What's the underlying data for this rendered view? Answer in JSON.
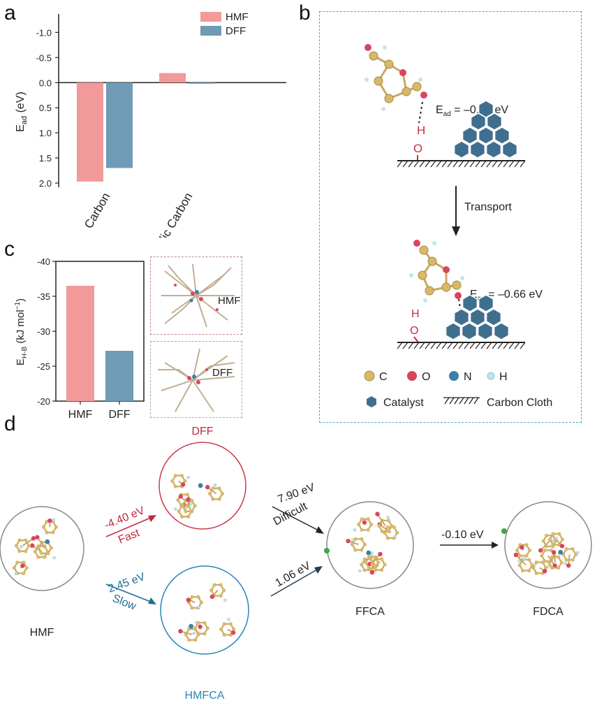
{
  "panel_labels": {
    "a": "a",
    "b": "b",
    "c": "c",
    "d": "d"
  },
  "panel_a": {
    "ylabel_main": "E",
    "ylabel_sub": "ad",
    "ylabel_unit": " (eV)",
    "legend": [
      {
        "name": "HMF",
        "color": "#f29a9a"
      },
      {
        "name": "DFF",
        "color": "#6f9bb5"
      }
    ]
  },
  "panel_c": {
    "ylabel_main": "E",
    "ylabel_sub": "H-B",
    "ylabel_unit": " (kJ mol",
    "ylabel_sup": "−1",
    "ylabel_close": ")",
    "inset_labels": {
      "top": "HMF",
      "bottom": "DFF"
    }
  },
  "chart_data": [
    {
      "type": "bar",
      "categories": [
        "Carbon",
        "Hydrophilic Carbon"
      ],
      "series": [
        {
          "name": "HMF",
          "values": [
            1.97,
            -0.19
          ],
          "color": "#f29a9a"
        },
        {
          "name": "DFF",
          "values": [
            1.7,
            0.02
          ],
          "color": "#6f9bb5"
        }
      ],
      "ylabel": "Ead (eV)",
      "ylim": [
        -1.2,
        2.0
      ],
      "inverted": true,
      "yticks": [
        "-1.0",
        "-0.5",
        "0.0",
        "0.5",
        "1.0",
        "1.5",
        "2.0"
      ],
      "ytick_values": [
        -1.0,
        -0.5,
        0.0,
        0.5,
        1.0,
        1.5,
        2.0
      ],
      "legend": "top-right"
    },
    {
      "type": "bar",
      "categories": [
        "HMF",
        "DFF"
      ],
      "values": [
        -36.5,
        -27.2
      ],
      "colors": [
        "#f29a9a",
        "#6f9bb5"
      ],
      "ylabel": "EH-B (kJ mol−1)",
      "ylim": [
        -40,
        -20
      ],
      "yticks": [
        "-40",
        "-35",
        "-30",
        "-25",
        "-20"
      ],
      "ytick_values": [
        -40,
        -35,
        -30,
        -25,
        -20
      ]
    }
  ],
  "panel_b": {
    "ead1": "E",
    "ead1_sub": "ad",
    "ead1_val": " = –0.19 eV",
    "ead2": "E",
    "ead2_sub": "ad",
    "ead2_val": " = –0.66 eV",
    "transport": "Transport",
    "h_atom": "H",
    "o_atom": "O",
    "legend_atoms": [
      {
        "symbol": "C",
        "color": "#d9b86a"
      },
      {
        "symbol": "O",
        "color": "#d9455f"
      },
      {
        "symbol": "N",
        "color": "#3d7fa6"
      },
      {
        "symbol": "H",
        "color": "#bfe6ec"
      }
    ],
    "legend_catalyst": "Catalyst",
    "legend_cloth": "Carbon Cloth",
    "colors": {
      "catalyst": "#3f6f8f",
      "frame": "#4aa8cf",
      "bond_red": "#c03040"
    }
  },
  "panel_d": {
    "nodes": {
      "hmf": "HMF",
      "dff": "DFF",
      "hmfca": "HMFCA",
      "ffca": "FFCA",
      "fdca": "FDCA"
    },
    "arrows": [
      {
        "energy": "-4.40 eV",
        "tag": "Fast",
        "color": "#c0283a"
      },
      {
        "energy": "2.45 eV",
        "tag": "Slow",
        "color": "#1e6d96"
      },
      {
        "energy": "7.90 eV",
        "tag": "Difficult",
        "color": "#222222"
      },
      {
        "energy": "1.06 eV",
        "tag": "",
        "color": "#1e3f5a"
      },
      {
        "energy": "-0.10 eV",
        "tag": "",
        "color": "#222222"
      }
    ],
    "colors": {
      "dff": "#c0283a",
      "hmfca": "#2a86b8"
    }
  }
}
